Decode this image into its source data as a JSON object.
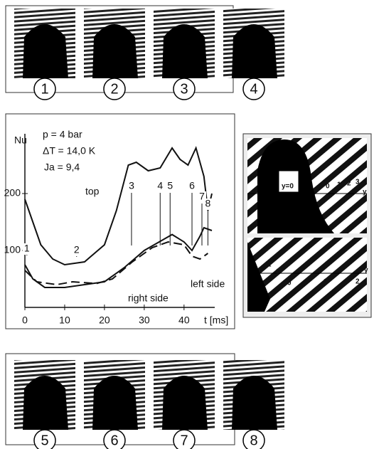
{
  "top_frames": {
    "labels": [
      "1",
      "2",
      "3",
      "4"
    ]
  },
  "bottom_frames": {
    "labels": [
      "5",
      "6",
      "7",
      "8"
    ]
  },
  "side_panel": {
    "top_labels": [
      "y=0",
      "0",
      "1",
      "2",
      "3",
      "y"
    ],
    "bottom_labels": [
      "2",
      "0",
      "0",
      "1",
      "2",
      "y"
    ]
  },
  "chart_data": {
    "type": "line",
    "y_label": "Nu",
    "x_label": "t [ms]",
    "annotations": [
      "p   = 4 bar",
      "ΔT = 14,0 K",
      "Ja = 9,4"
    ],
    "xlim": [
      0,
      47
    ],
    "ylim": [
      0,
      305
    ],
    "xticks": [
      0,
      10,
      20,
      30,
      40
    ],
    "yticks": [
      100,
      200
    ],
    "series": [
      {
        "name": "top",
        "color": "#111",
        "dash": false,
        "x": [
          0,
          2,
          4,
          7,
          10,
          15,
          20,
          23,
          26,
          28,
          31,
          34,
          37,
          39,
          41,
          43,
          45,
          46,
          47
        ],
        "values": [
          190,
          150,
          110,
          85,
          75,
          80,
          110,
          170,
          250,
          255,
          240,
          245,
          280,
          260,
          250,
          280,
          230,
          170,
          200
        ]
      },
      {
        "name": "right side",
        "color": "#111",
        "dash": false,
        "x": [
          0,
          2,
          5,
          10,
          15,
          20,
          25,
          30,
          35,
          37,
          40,
          42,
          44,
          45,
          47
        ],
        "values": [
          75,
          50,
          35,
          35,
          40,
          45,
          70,
          100,
          120,
          128,
          115,
          100,
          125,
          140,
          135
        ]
      },
      {
        "name": "left side",
        "color": "#111",
        "dash": true,
        "x": [
          0,
          3,
          8,
          12,
          18,
          22,
          27,
          32,
          36,
          40,
          42,
          44,
          46
        ],
        "values": [
          65,
          45,
          40,
          45,
          42,
          50,
          80,
          105,
          115,
          110,
          90,
          85,
          95
        ]
      }
    ],
    "markers": [
      {
        "label": "1",
        "t": 0.5
      },
      {
        "label": "2",
        "t": 13
      },
      {
        "label": "3",
        "t": 26.8
      },
      {
        "label": "4",
        "t": 34
      },
      {
        "label": "5",
        "t": 36.5
      },
      {
        "label": "6",
        "t": 42
      },
      {
        "label": "7",
        "t": 44.5
      },
      {
        "label": "8",
        "t": 46
      }
    ]
  }
}
